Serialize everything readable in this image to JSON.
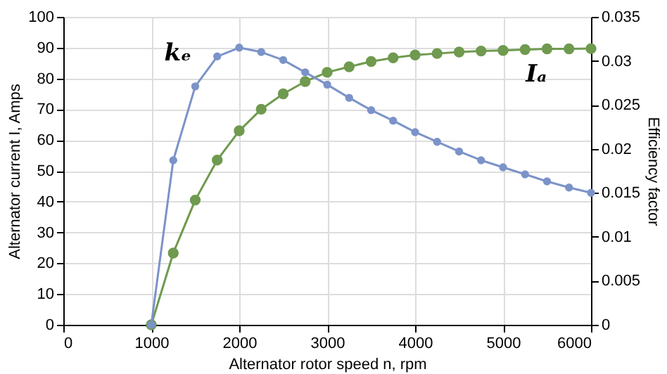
{
  "chart_data": {
    "type": "line",
    "xlabel": "Alternator rotor speed n, rpm",
    "ylabel": "Alternator current I, Amps",
    "y2label": "Efficiency factor",
    "x": [
      1000,
      1250,
      1500,
      1750,
      2000,
      2250,
      2500,
      2750,
      3000,
      3250,
      3500,
      3750,
      4000,
      4250,
      4500,
      4750,
      5000,
      5250,
      5500,
      5750,
      6000
    ],
    "series": [
      {
        "name": "kₑ",
        "color": "#7b93c9",
        "axis": "y2",
        "values": [
          0,
          0.0187,
          0.0271,
          0.0305,
          0.0315,
          0.031,
          0.0301,
          0.0287,
          0.0273,
          0.0258,
          0.0244,
          0.0232,
          0.0219,
          0.0208,
          0.0197,
          0.0187,
          0.0179,
          0.0171,
          0.0163,
          0.0156,
          0.015
        ]
      },
      {
        "name": "Iₐ",
        "color": "#6f9a4f",
        "values": [
          0,
          23.3,
          40.5,
          53.5,
          63,
          70,
          75,
          79,
          82,
          83.8,
          85.5,
          86.7,
          87.6,
          88.1,
          88.6,
          88.9,
          89.1,
          89.4,
          89.6,
          89.6,
          89.7
        ]
      }
    ],
    "xlim": [
      0,
      6000
    ],
    "xticks": [
      0,
      1000,
      2000,
      3000,
      4000,
      5000,
      6000
    ],
    "ylim": [
      0,
      100
    ],
    "yticks": [
      0,
      10,
      20,
      30,
      40,
      50,
      60,
      70,
      80,
      90,
      100
    ],
    "y2lim": [
      0,
      0.035
    ],
    "y2ticks": [
      0,
      0.005,
      0.01,
      0.015,
      0.02,
      0.025,
      0.03,
      0.035
    ],
    "grid": true,
    "marker": "circle",
    "line_style": "solid"
  }
}
